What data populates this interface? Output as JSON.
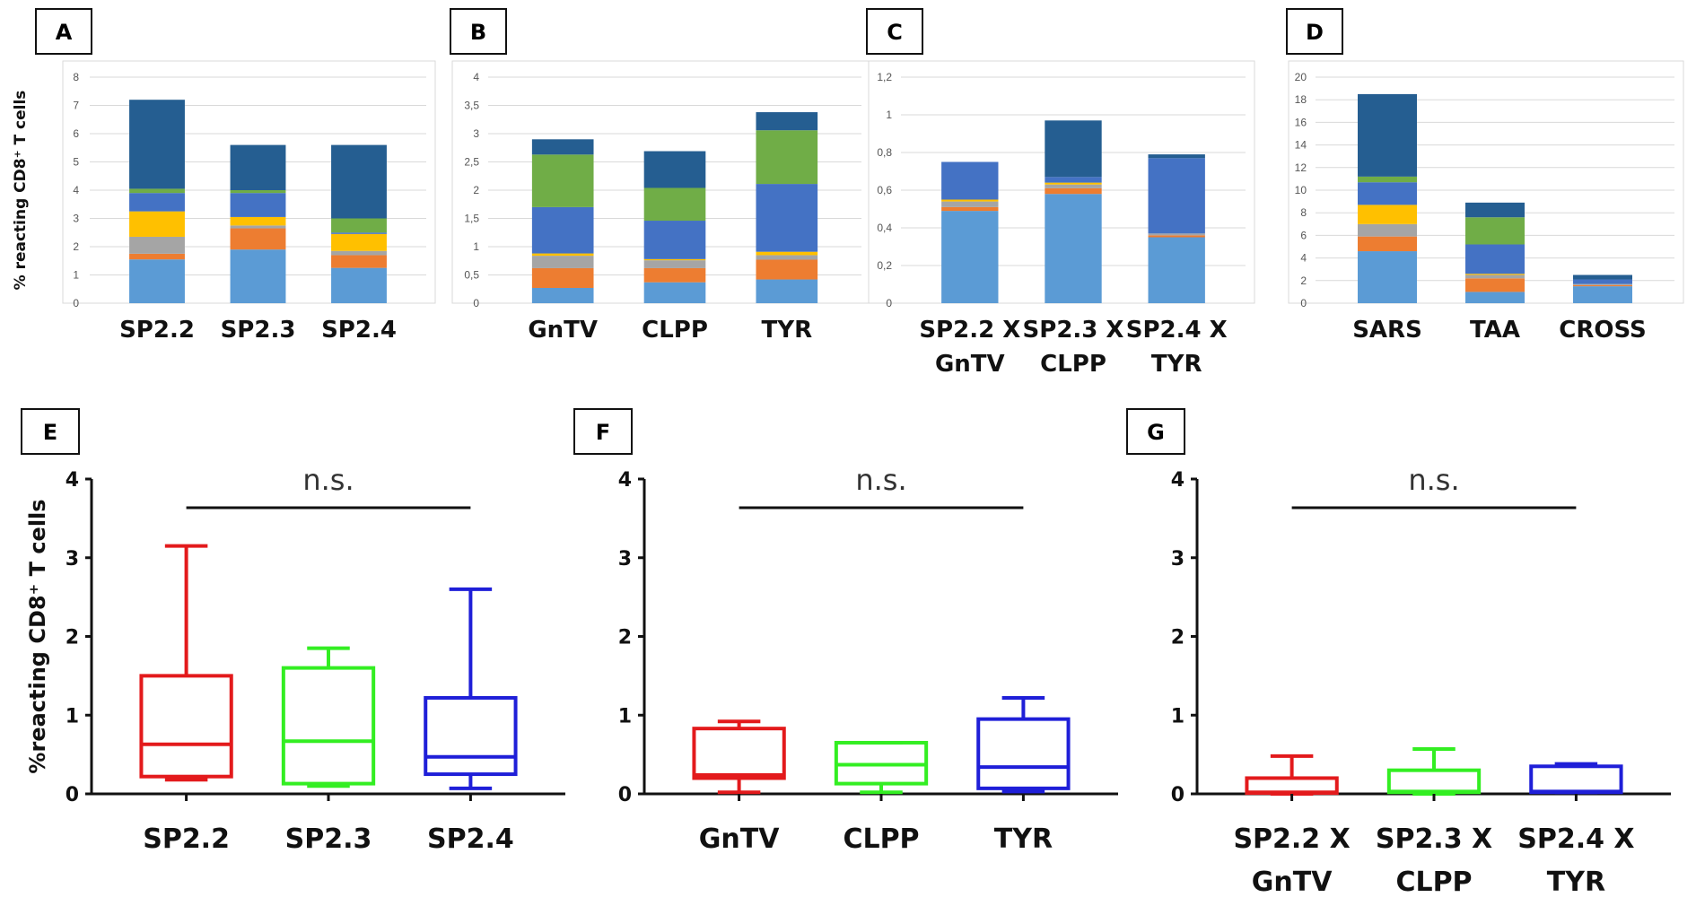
{
  "segment_colors": [
    "#5b9bd5",
    "#ed7d31",
    "#a5a5a5",
    "#ffc000",
    "#4472c4",
    "#70ad47",
    "#255e91"
  ],
  "y_axis_label": "% reacting CD8⁺ T cells",
  "y_axis_label_bottom": "%reacting CD8⁺ T cells",
  "chart_data": [
    {
      "panel": "A",
      "type": "bar",
      "stacked": true,
      "categories": [
        "SP2.2",
        "SP2.3",
        "SP2.4"
      ],
      "ylim": [
        0,
        8
      ],
      "y_ticks": [
        {
          "v": 0,
          "t": "0"
        },
        {
          "v": 1,
          "t": "1"
        },
        {
          "v": 2,
          "t": "2"
        },
        {
          "v": 3,
          "t": "3"
        },
        {
          "v": 4,
          "t": "4"
        },
        {
          "v": 5,
          "t": "5"
        },
        {
          "v": 6,
          "t": "6"
        },
        {
          "v": 7,
          "t": "7"
        },
        {
          "v": 8,
          "t": "8"
        }
      ],
      "stacks": [
        [
          1.55,
          0.2,
          0.6,
          0.9,
          0.65,
          0.15,
          3.15
        ],
        [
          1.9,
          0.75,
          0.1,
          0.3,
          0.85,
          0.1,
          1.6
        ],
        [
          1.25,
          0.45,
          0.15,
          0.6,
          0.05,
          0.5,
          2.6
        ]
      ]
    },
    {
      "panel": "B",
      "type": "bar",
      "stacked": true,
      "categories": [
        "GnTV",
        "CLPP",
        "TYR"
      ],
      "ylim": [
        0,
        4
      ],
      "y_ticks": [
        {
          "v": 0,
          "t": "0"
        },
        {
          "v": 0.5,
          "t": "0,5"
        },
        {
          "v": 1,
          "t": "1"
        },
        {
          "v": 1.5,
          "t": "1,5"
        },
        {
          "v": 2,
          "t": "2"
        },
        {
          "v": 2.5,
          "t": "2,5"
        },
        {
          "v": 3,
          "t": "3"
        },
        {
          "v": 3.5,
          "t": "3,5"
        },
        {
          "v": 4,
          "t": "4"
        }
      ],
      "stacks": [
        [
          0.27,
          0.35,
          0.22,
          0.04,
          0.82,
          0.93,
          0.27
        ],
        [
          0.37,
          0.25,
          0.14,
          0.02,
          0.68,
          0.58,
          0.65
        ],
        [
          0.42,
          0.35,
          0.08,
          0.06,
          1.2,
          0.95,
          0.32
        ]
      ]
    },
    {
      "panel": "C",
      "type": "bar",
      "stacked": true,
      "categories": [
        "SP2.2 X GnTV",
        "SP2.3 X CLPP",
        "SP2.4 X TYR"
      ],
      "category_lines": [
        [
          "SP2.2 X",
          "GnTV"
        ],
        [
          "SP2.3 X",
          "CLPP"
        ],
        [
          "SP2.4 X",
          "TYR"
        ]
      ],
      "ylim": [
        0,
        1.2
      ],
      "y_ticks": [
        {
          "v": 0,
          "t": "0"
        },
        {
          "v": 0.2,
          "t": "0,2"
        },
        {
          "v": 0.4,
          "t": "0,4"
        },
        {
          "v": 0.6,
          "t": "0,6"
        },
        {
          "v": 0.8,
          "t": "0,8"
        },
        {
          "v": 1,
          "t": "1"
        },
        {
          "v": 1.2,
          "t": "1,2"
        }
      ],
      "stacks": [
        [
          0.49,
          0.02,
          0.03,
          0.01,
          0.2,
          0.0,
          0.0
        ],
        [
          0.58,
          0.03,
          0.02,
          0.01,
          0.03,
          0.0,
          0.3
        ],
        [
          0.35,
          0.01,
          0.01,
          0.0,
          0.4,
          0.0,
          0.02
        ]
      ]
    },
    {
      "panel": "D",
      "type": "bar",
      "stacked": true,
      "categories": [
        "SARS",
        "TAA",
        "CROSS"
      ],
      "ylim": [
        0,
        20
      ],
      "y_ticks": [
        {
          "v": 0,
          "t": "0"
        },
        {
          "v": 2,
          "t": "2"
        },
        {
          "v": 4,
          "t": "4"
        },
        {
          "v": 6,
          "t": "6"
        },
        {
          "v": 8,
          "t": "8"
        },
        {
          "v": 10,
          "t": "10"
        },
        {
          "v": 12,
          "t": "12"
        },
        {
          "v": 14,
          "t": "14"
        },
        {
          "v": 16,
          "t": "16"
        },
        {
          "v": 18,
          "t": "18"
        },
        {
          "v": 20,
          "t": "20"
        }
      ],
      "stacks": [
        [
          4.6,
          1.3,
          1.1,
          1.7,
          2.0,
          0.5,
          7.3
        ],
        [
          1.0,
          1.2,
          0.3,
          0.1,
          2.6,
          2.4,
          1.3
        ],
        [
          1.5,
          0.1,
          0.1,
          0.0,
          0.4,
          0.0,
          0.4
        ]
      ]
    },
    {
      "panel": "E",
      "type": "box",
      "categories": [
        "SP2.2",
        "SP2.3",
        "SP2.4"
      ],
      "ylim": [
        0,
        4
      ],
      "y_ticks": [
        {
          "v": 0,
          "t": "0"
        },
        {
          "v": 1,
          "t": "1"
        },
        {
          "v": 2,
          "t": "2"
        },
        {
          "v": 3,
          "t": "3"
        },
        {
          "v": 4,
          "t": "4"
        }
      ],
      "boxes": [
        {
          "min": 0.18,
          "q1": 0.22,
          "median": 0.63,
          "q3": 1.5,
          "max": 3.15,
          "color": "#e31a1c"
        },
        {
          "min": 0.1,
          "q1": 0.13,
          "median": 0.67,
          "q3": 1.6,
          "max": 1.85,
          "color": "#33ee22"
        },
        {
          "min": 0.07,
          "q1": 0.25,
          "median": 0.47,
          "q3": 1.22,
          "max": 2.6,
          "color": "#1f1fd8"
        }
      ],
      "annotation": "n.s."
    },
    {
      "panel": "F",
      "type": "box",
      "categories": [
        "GnTV",
        "CLPP",
        "TYR"
      ],
      "ylim": [
        0,
        4
      ],
      "y_ticks": [
        {
          "v": 0,
          "t": "0"
        },
        {
          "v": 1,
          "t": "1"
        },
        {
          "v": 2,
          "t": "2"
        },
        {
          "v": 3,
          "t": "3"
        },
        {
          "v": 4,
          "t": "4"
        }
      ],
      "boxes": [
        {
          "min": 0.02,
          "q1": 0.2,
          "median": 0.24,
          "q3": 0.83,
          "max": 0.92,
          "color": "#e31a1c"
        },
        {
          "min": 0.02,
          "q1": 0.13,
          "median": 0.37,
          "q3": 0.65,
          "max": 0.65,
          "color": "#33ee22"
        },
        {
          "min": 0.03,
          "q1": 0.07,
          "median": 0.34,
          "q3": 0.95,
          "max": 1.22,
          "color": "#1f1fd8"
        }
      ],
      "annotation": "n.s."
    },
    {
      "panel": "G",
      "type": "box",
      "categories": [
        "SP2.2 X GnTV",
        "SP2.3 X CLPP",
        "SP2.4 X TYR"
      ],
      "category_lines": [
        [
          "SP2.2 X",
          "GnTV"
        ],
        [
          "SP2.3 X",
          "CLPP"
        ],
        [
          "SP2.4 X",
          "TYR"
        ]
      ],
      "ylim": [
        0,
        4
      ],
      "y_ticks": [
        {
          "v": 0,
          "t": "0"
        },
        {
          "v": 1,
          "t": "1"
        },
        {
          "v": 2,
          "t": "2"
        },
        {
          "v": 3,
          "t": "3"
        },
        {
          "v": 4,
          "t": "4"
        }
      ],
      "boxes": [
        {
          "min": 0.0,
          "q1": 0.01,
          "median": 0.02,
          "q3": 0.2,
          "max": 0.48,
          "color": "#e31a1c"
        },
        {
          "min": 0.0,
          "q1": 0.02,
          "median": 0.03,
          "q3": 0.3,
          "max": 0.57,
          "color": "#33ee22"
        },
        {
          "min": 0.02,
          "q1": 0.02,
          "median": 0.03,
          "q3": 0.35,
          "max": 0.38,
          "color": "#1f1fd8"
        }
      ],
      "annotation": "n.s."
    }
  ]
}
